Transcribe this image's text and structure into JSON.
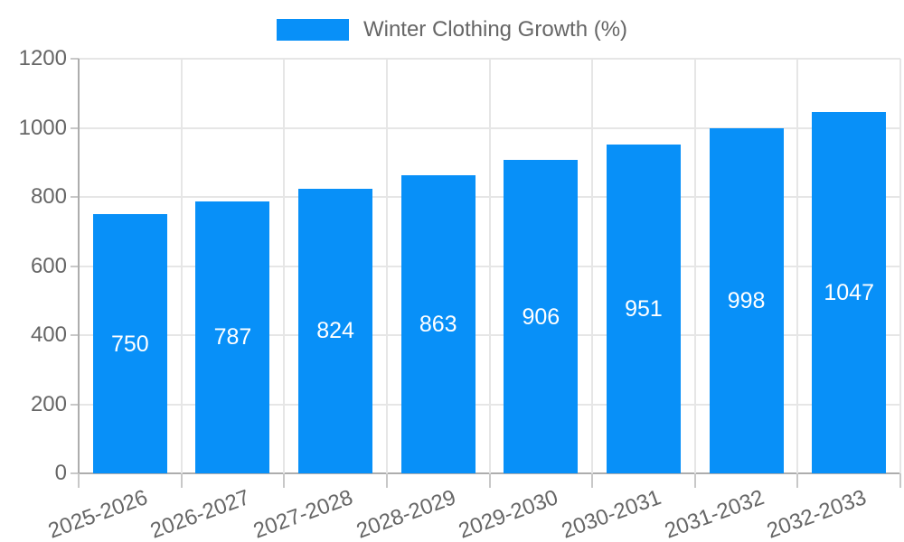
{
  "chart_data": {
    "type": "bar",
    "title": "Winter Clothing Growth (%)",
    "categories": [
      "2025-2026",
      "2026-2027",
      "2027-2028",
      "2028-2029",
      "2029-2030",
      "2030-2031",
      "2031-2032",
      "2032-2033"
    ],
    "values": [
      750,
      787,
      824,
      863,
      906,
      951,
      998,
      1047
    ],
    "xlabel": "",
    "ylabel": "",
    "ylim": [
      0,
      1200
    ],
    "yticks": [
      0,
      200,
      400,
      600,
      800,
      1000,
      1200
    ],
    "grid": true,
    "legend_position": "top-center",
    "value_labels": "inside-center",
    "colors": {
      "bar": "#0890F8",
      "value_label": "#FFFFFF",
      "axis_text": "#666666",
      "grid_line": "#E6E6E6",
      "tick_mark": "#C8C8C8",
      "axis_line": "#ADADAD",
      "background": "#FFFFFF"
    }
  },
  "legend": {
    "items": [
      {
        "label": "Winter Clothing Growth (%)",
        "swatch_color": "#0890F8"
      }
    ]
  }
}
